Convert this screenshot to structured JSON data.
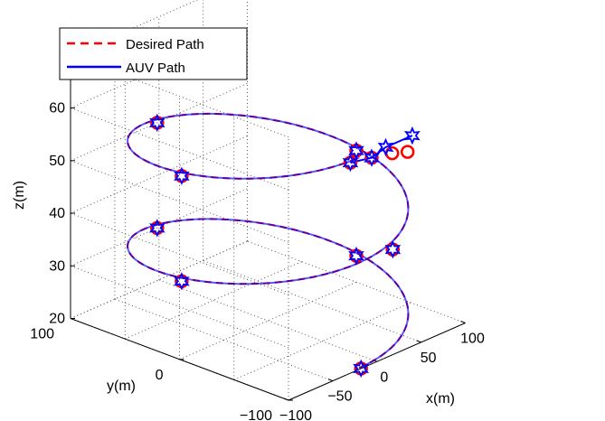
{
  "chart_data": {
    "type": "line3d",
    "title": "",
    "xlabel": "x(m)",
    "ylabel": "y(m)",
    "zlabel": "z(m)",
    "xlim": [
      -100,
      100
    ],
    "ylim": [
      -100,
      100
    ],
    "zlim": [
      20,
      70
    ],
    "x_ticks": [
      "−100",
      "−50",
      "0",
      "50",
      "100"
    ],
    "y_ticks": [
      "−100",
      "0",
      "100"
    ],
    "z_ticks": [
      "20",
      "30",
      "40",
      "50",
      "60"
    ],
    "grid": true,
    "legend": {
      "position": "top-left"
    },
    "series": [
      {
        "name": "Desired Path",
        "color": "#ff0000",
        "style": "dashed",
        "helix": {
          "radius": 100,
          "turns": 2,
          "z_start": 20,
          "z_end": 60
        }
      },
      {
        "name": "AUV Path",
        "color": "#0000ff",
        "style": "solid",
        "helix": {
          "radius": 100,
          "turns": 2,
          "z_start": 20,
          "z_end": 60
        }
      }
    ],
    "desired_markers": {
      "marker": "circle",
      "color": "#ff0000",
      "points_xyz": [
        [
          -18,
          -100,
          20
        ],
        [
          100,
          0,
          25
        ],
        [
          -2,
          100,
          30
        ],
        [
          -100,
          -2,
          35
        ],
        [
          18,
          -100,
          40
        ],
        [
          100,
          0,
          45
        ],
        [
          -2,
          100,
          50
        ],
        [
          -100,
          -2,
          55
        ],
        [
          -30,
          -100,
          60
        ],
        [
          -12,
          -105,
          60
        ],
        [
          5,
          -110,
          60
        ],
        [
          15,
          -116,
          60
        ]
      ]
    },
    "auv_markers": {
      "marker": "hexagram",
      "color": "#0000ff",
      "points_xyz": [
        [
          -18,
          -100,
          20
        ],
        [
          100,
          0,
          25
        ],
        [
          -2,
          100,
          30
        ],
        [
          -100,
          -2,
          35
        ],
        [
          18,
          -100,
          40
        ],
        [
          100,
          0,
          45
        ],
        [
          -2,
          100,
          50
        ],
        [
          -100,
          -2,
          55
        ],
        [
          -30,
          -100,
          60
        ],
        [
          -12,
          -105,
          60
        ],
        [
          10,
          -100,
          60
        ],
        [
          40,
          -100,
          60
        ]
      ]
    }
  }
}
